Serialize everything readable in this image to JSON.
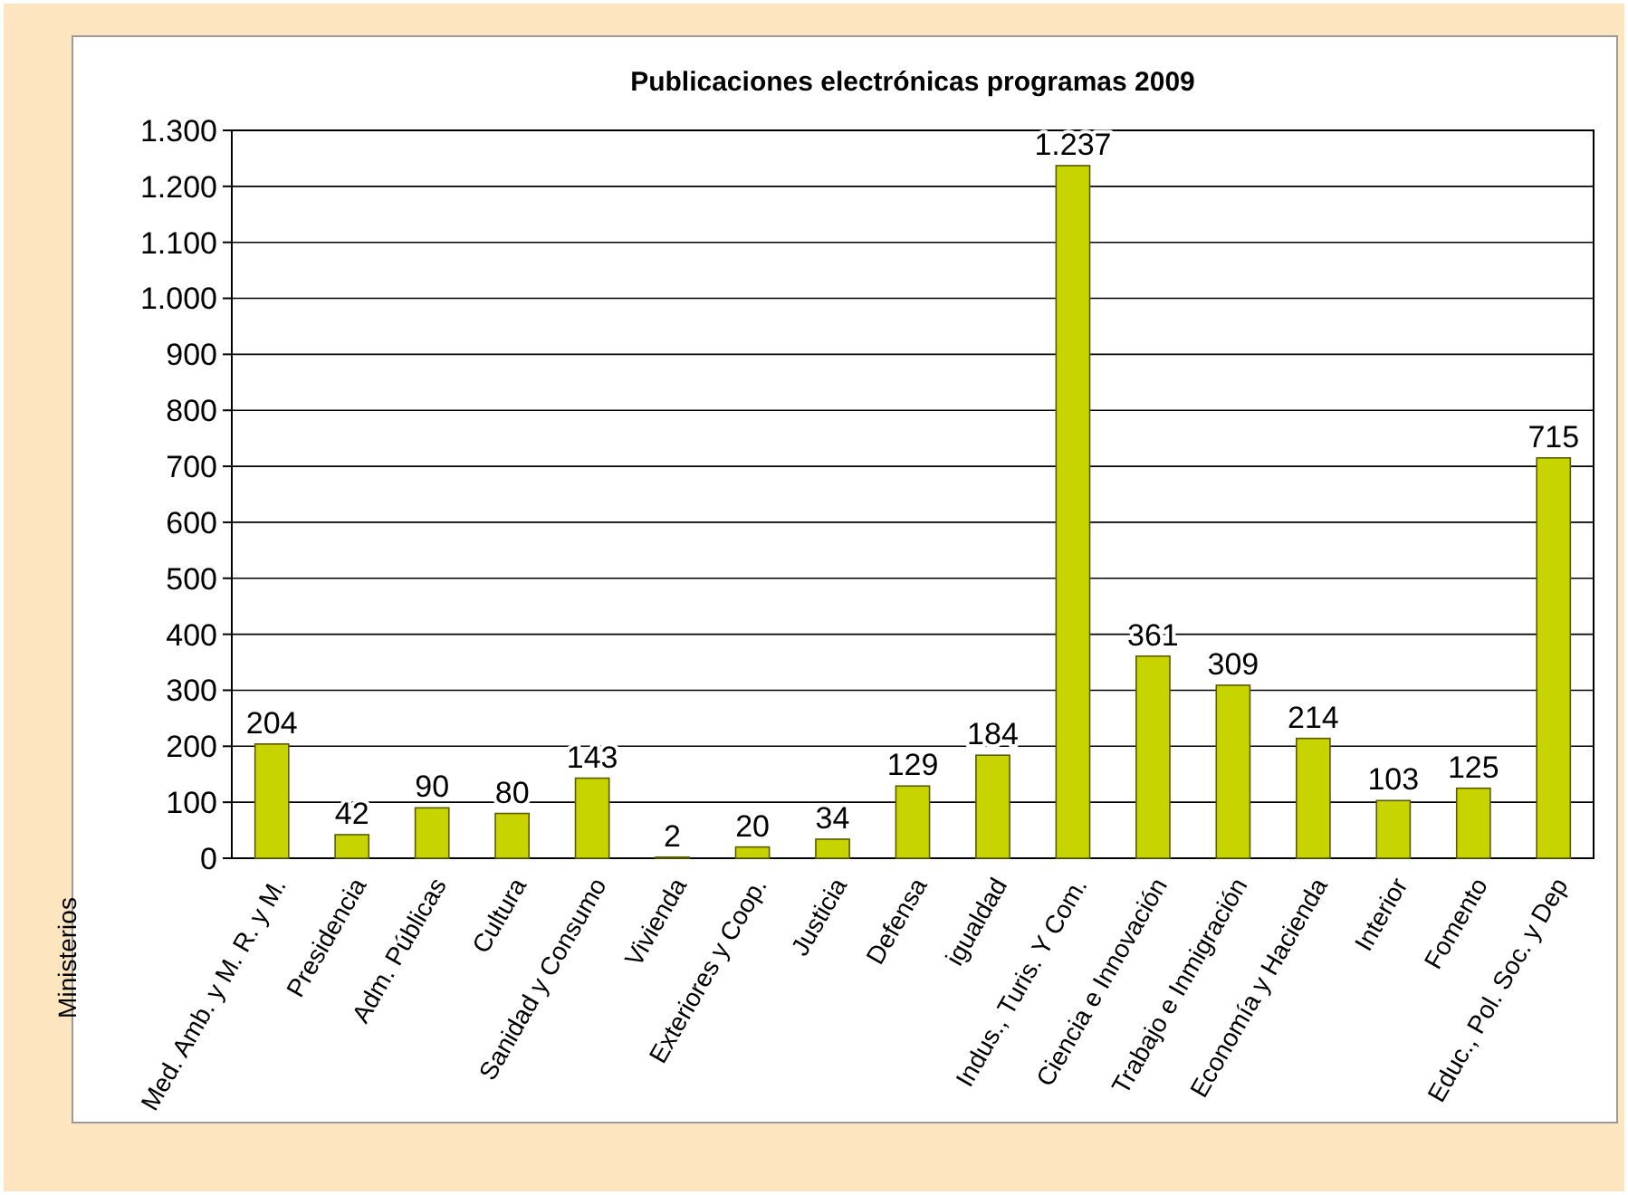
{
  "chart_data": {
    "type": "bar",
    "title": "Publicaciones electrónicas programas 2009",
    "ylabel": "Ministerios",
    "categories": [
      "Med. Amb. y M. R. y M.",
      "Presidencia",
      "Adm. Públicas",
      "Cultura",
      "Sanidad y Consumo",
      "Vivienda",
      "Exteriores y Coop.",
      "Justicia",
      "Defensa",
      "igualdad",
      "Indus., Turis. Y Com.",
      "Ciencia e Innovación",
      "Trabajo e Inmigración",
      "Economía y Hacienda",
      "Interior",
      "Fomento",
      "Educ., Pol. Soc. y Dep"
    ],
    "values": [
      204,
      42,
      90,
      80,
      143,
      2,
      20,
      34,
      129,
      184,
      1237,
      361,
      309,
      214,
      103,
      125,
      715
    ],
    "value_labels": [
      "204",
      "42",
      "90",
      "80",
      "143",
      "2",
      "20",
      "34",
      "129",
      "184",
      "1.237",
      "361",
      "309",
      "214",
      "103",
      "125",
      "715"
    ],
    "color": "#c8d400",
    "ylim": [
      0,
      1300
    ],
    "yticks": [
      0,
      100,
      200,
      300,
      400,
      500,
      600,
      700,
      800,
      900,
      {
        "value": 1000,
        "label": "1.000"
      },
      {
        "value": 1100,
        "label": "1.100"
      },
      {
        "value": 1200,
        "label": "1.200"
      },
      {
        "value": 1300,
        "label": "1.300"
      }
    ],
    "grid": "y"
  }
}
